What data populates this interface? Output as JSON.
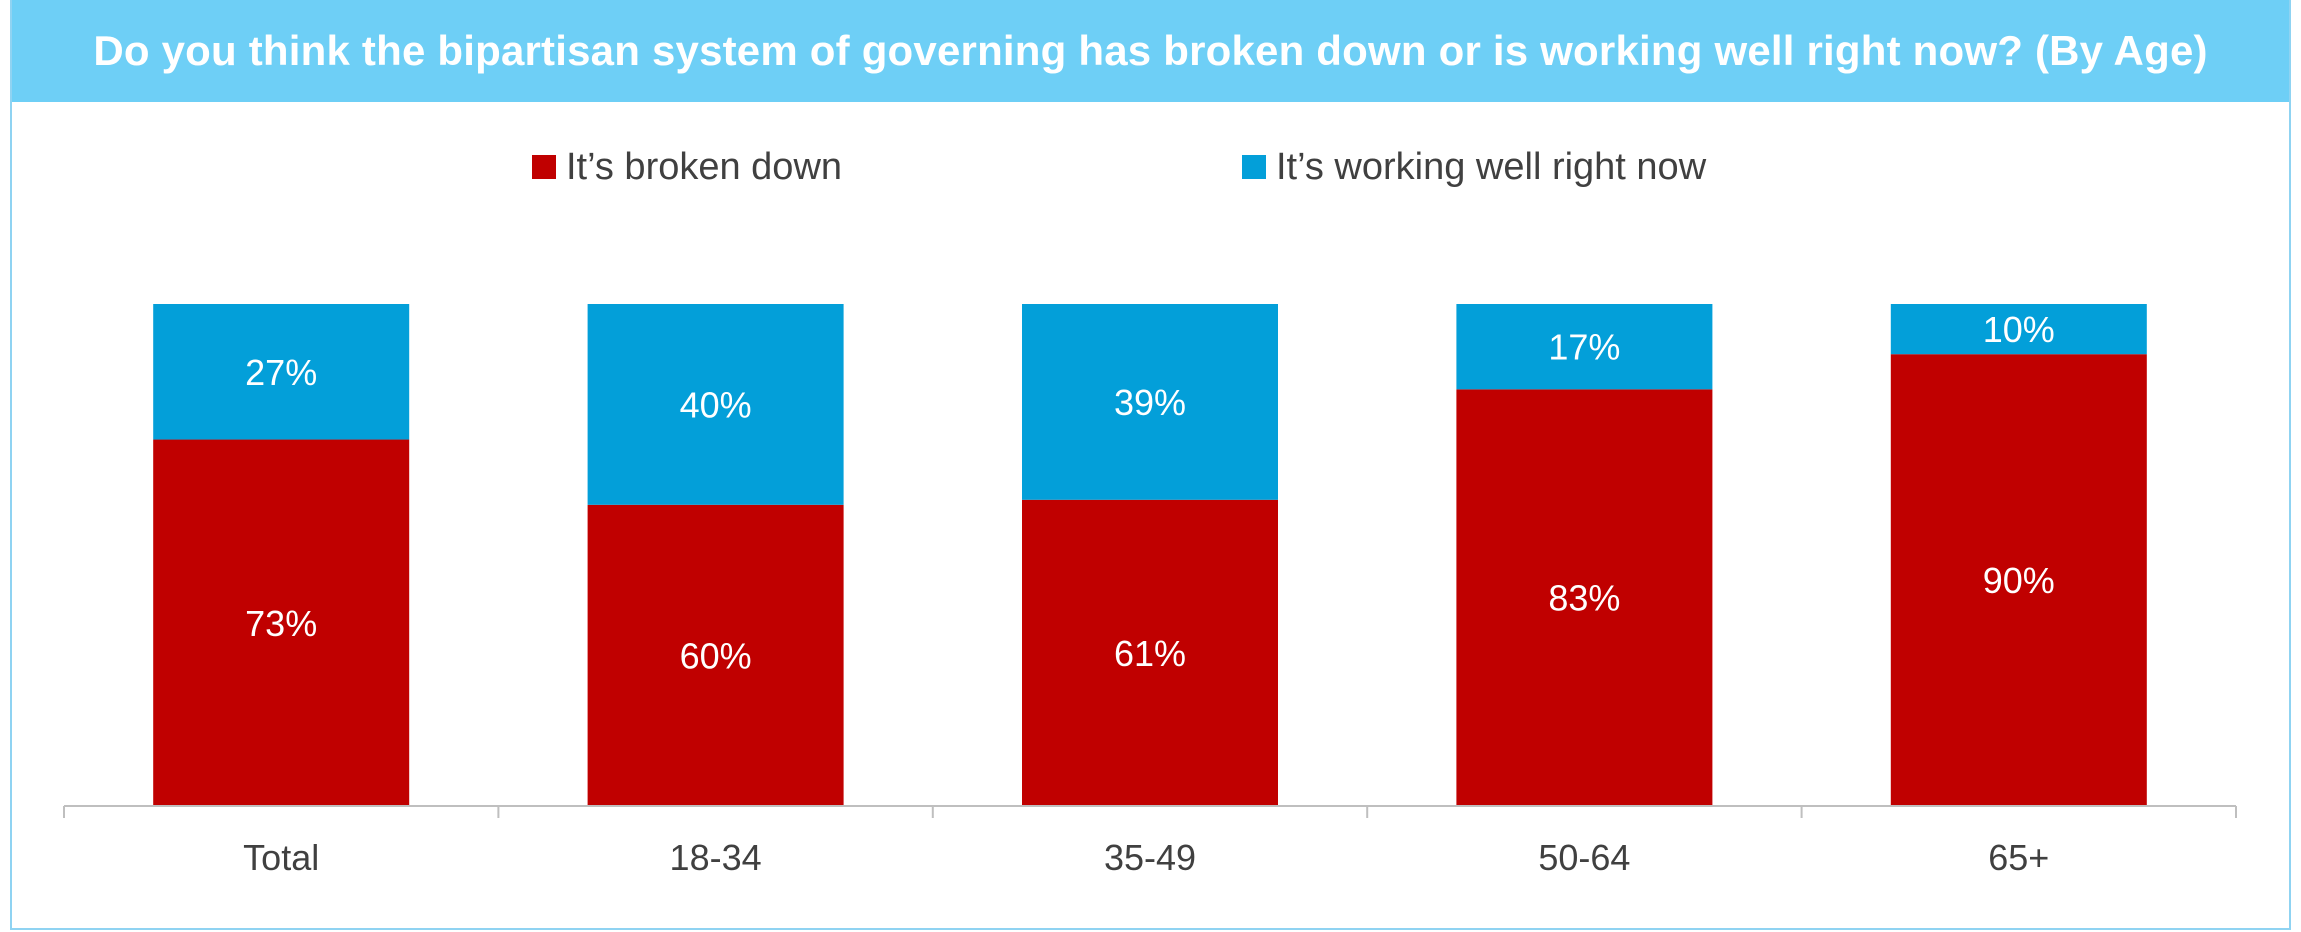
{
  "title": "Do you think the bipartisan system of governing has broken down or is working well right now? (By Age)",
  "colors": {
    "title_bg": "#6ecff6",
    "broken": "#c00000",
    "working": "#039fd9",
    "axis": "#bfbfbf",
    "text": "#404040"
  },
  "legend": [
    {
      "label": "It’s broken down",
      "color": "#c00000"
    },
    {
      "label": "It’s working well right now",
      "color": "#039fd9"
    }
  ],
  "chart_data": {
    "type": "bar",
    "stacked": true,
    "categories": [
      "Total",
      "18-34",
      "35-49",
      "50-64",
      "65+"
    ],
    "series": [
      {
        "name": "It’s broken down",
        "color": "#c00000",
        "values": [
          73,
          60,
          61,
          83,
          90
        ],
        "labels": [
          "73%",
          "60%",
          "61%",
          "83%",
          "90%"
        ]
      },
      {
        "name": "It’s working well right now",
        "color": "#039fd9",
        "values": [
          27,
          40,
          39,
          17,
          10
        ],
        "labels": [
          "27%",
          "40%",
          "39%",
          "17%",
          "10%"
        ]
      }
    ],
    "ylim": [
      0,
      100
    ],
    "grid": false,
    "legend_position": "top"
  }
}
